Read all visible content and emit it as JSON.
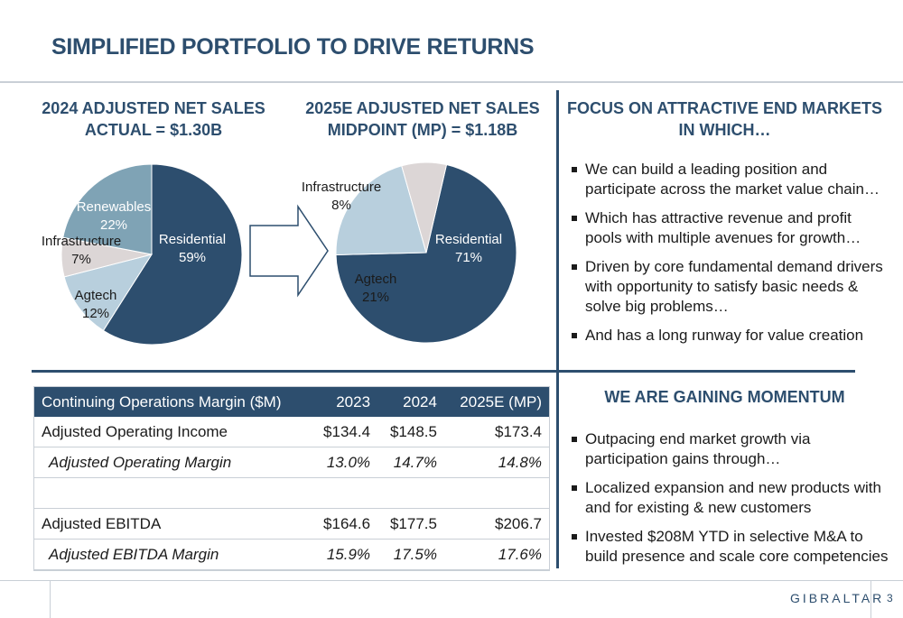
{
  "title": "SIMPLIFIED PORTFOLIO TO DRIVE RETURNS",
  "chart_data": [
    {
      "type": "pie",
      "title_line1": "2024 ADJUSTED NET SALES",
      "title_line2": "ACTUAL = $1.30B",
      "slices": [
        {
          "name": "Residential",
          "value": 59,
          "label": "59%",
          "color": "#2d4e6e",
          "text_color": "#ffffff"
        },
        {
          "name": "Agtech",
          "value": 12,
          "label": "12%",
          "color": "#b8cfdd",
          "text_color": "#1b1b1b"
        },
        {
          "name": "Infrastructure",
          "value": 7,
          "label": "7%",
          "color": "#dcd6d6",
          "text_color": "#1b1b1b"
        },
        {
          "name": "Renewables",
          "value": 22,
          "label": "22%",
          "color": "#7fa3b5",
          "text_color": "#ffffff"
        }
      ]
    },
    {
      "type": "pie",
      "title_line1": "2025E ADJUSTED NET SALES",
      "title_line2": "MIDPOINT (MP) = $1.18B",
      "slices": [
        {
          "name": "Residential",
          "value": 71,
          "label": "71%",
          "color": "#2d4e6e",
          "text_color": "#ffffff"
        },
        {
          "name": "Agtech",
          "value": 21,
          "label": "21%",
          "color": "#b8cfdd",
          "text_color": "#1b1b1b"
        },
        {
          "name": "Infrastructure",
          "value": 8,
          "label": "8%",
          "color": "#dcd6d6",
          "text_color": "#1b1b1b"
        }
      ]
    }
  ],
  "focus": {
    "title_line1": "FOCUS ON ATTRACTIVE END MARKETS",
    "title_line2": "IN WHICH…",
    "bullets": [
      "We can build a leading position and participate across the market value chain…",
      "Which has attractive revenue and profit pools with multiple avenues for growth…",
      "Driven by core fundamental demand drivers with opportunity to satisfy basic needs & solve big problems…",
      "And has a long runway for value creation"
    ]
  },
  "momentum": {
    "title": "WE ARE GAINING MOMENTUM",
    "bullets": [
      "Outpacing end market growth via participation gains through…",
      "Localized expansion and new products with and for existing & new customers",
      "Invested $208M YTD in selective M&A to build presence and scale core competencies"
    ]
  },
  "table": {
    "header": [
      "Continuing Operations Margin ($M)",
      "2023",
      "2024",
      "2025E (MP)"
    ],
    "rows": [
      {
        "cells": [
          "Adjusted Operating Income",
          "$134.4",
          "$148.5",
          "$173.4"
        ],
        "italic": false
      },
      {
        "cells": [
          "Adjusted Operating Margin",
          "13.0%",
          "14.7%",
          "14.8%"
        ],
        "italic": true
      },
      {
        "cells": [
          "",
          "",
          "",
          ""
        ],
        "italic": false
      },
      {
        "cells": [
          "Adjusted EBITDA",
          "$164.6",
          "$177.5",
          "$206.7"
        ],
        "italic": false
      },
      {
        "cells": [
          "Adjusted EBITDA Margin",
          "15.9%",
          "17.5%",
          "17.6%"
        ],
        "italic": true
      }
    ]
  },
  "footer": {
    "brand": "GIBRALTAR",
    "page": "3"
  },
  "colors": {
    "accent": "#2d4e6e",
    "light_blue": "#b8cfdd",
    "mid_blue": "#7fa3b5",
    "grey": "#dcd6d6"
  }
}
